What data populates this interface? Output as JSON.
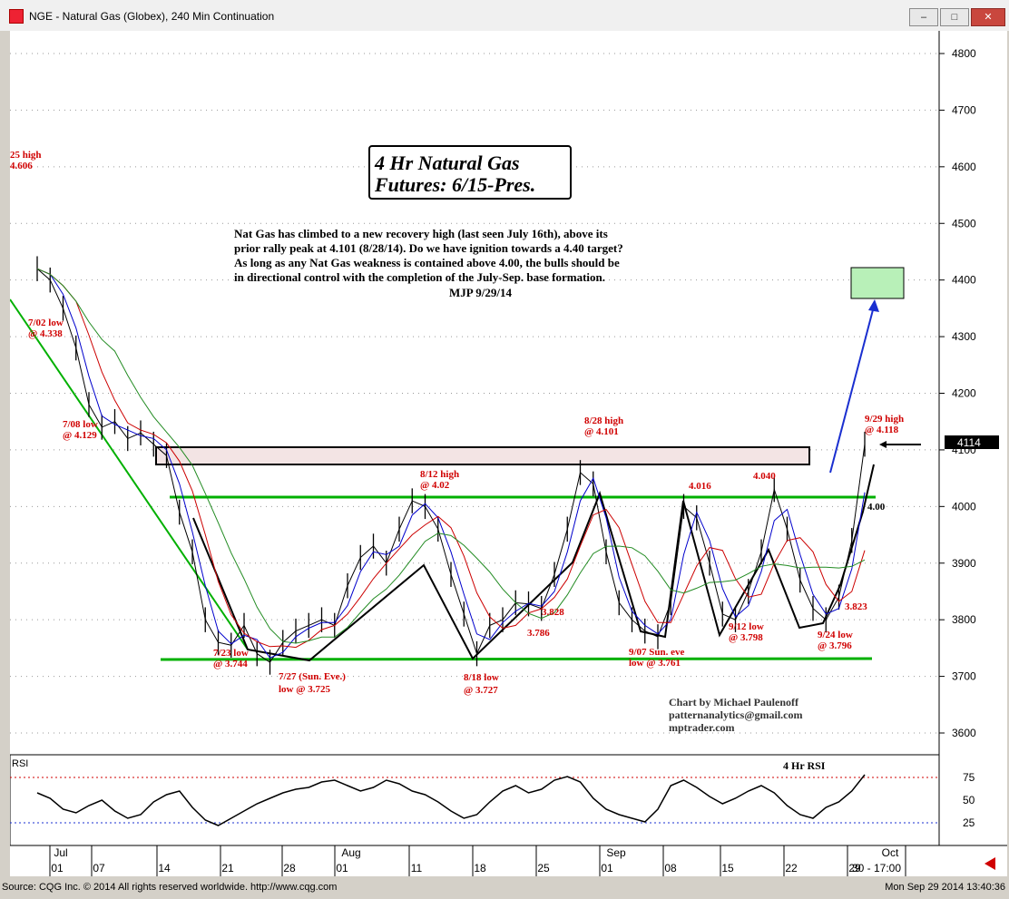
{
  "window": {
    "title": "NGE - Natural Gas (Globex), 240 Min Continuation",
    "btn_minimize": "–",
    "btn_maximize": "□",
    "btn_close": "✕",
    "icon": "app-icon"
  },
  "status": {
    "left": "Source: CQG Inc. © 2014 All rights reserved worldwide. http://www.cqg.com",
    "right": "Mon Sep 29 2014 13:40:36"
  },
  "chart_data": {
    "type": "line",
    "title": "4 Hr Natural Gas",
    "subtitle": "Futures:  6/15-Pres.",
    "commentary": [
      "Nat Gas has climbed to a new recovery high (last seen July 16th), above its",
      "prior rally peak at 4.101 (8/28/14). Do we have ignition towards a 4.40 target?",
      "As long as any Nat Gas weakness is contained above 4.00, the bulls should be",
      "in directional control with the completion of the July-Sep. base formation.",
      "MJP 9/29/14"
    ],
    "credit": [
      "Chart by Michael Paulenoff",
      "patternanalytics@gmail.com",
      "mptrader.com"
    ],
    "y_axis": {
      "ticks": [
        3600,
        3700,
        3800,
        3900,
        4000,
        4100,
        4200,
        4300,
        4400,
        4500,
        4600,
        4700,
        4800
      ],
      "ylim": [
        3560,
        4860
      ],
      "last_price": "4114"
    },
    "x_axis": {
      "months": [
        "Jul",
        "Aug",
        "Sep",
        "Oct"
      ],
      "days": [
        "01",
        "07",
        "14",
        "21",
        "28",
        "01",
        "11",
        "18",
        "25",
        "01",
        "08",
        "15",
        "22",
        "29",
        "30 - 17:00"
      ]
    },
    "series": [
      {
        "name": "",
        "x": [
          "07/01",
          "07/02",
          "07/03",
          "07/07",
          "07/08",
          "07/09",
          "07/10",
          "07/11",
          "07/14",
          "07/15",
          "07/16",
          "07/17",
          "07/18",
          "07/21",
          "07/22",
          "07/23",
          "07/24",
          "07/25",
          "07/27",
          "07/28",
          "07/29",
          "07/30",
          "07/31",
          "08/01",
          "08/04",
          "08/05",
          "08/06",
          "08/07",
          "08/08",
          "08/11",
          "08/12",
          "08/13",
          "08/14",
          "08/15",
          "08/18",
          "08/19",
          "08/20",
          "08/21",
          "08/22",
          "08/25",
          "08/26",
          "08/27",
          "08/28",
          "08/29",
          "09/02",
          "09/03",
          "09/04",
          "09/05",
          "09/07",
          "09/08",
          "09/09",
          "09/10",
          "09/11",
          "09/12",
          "09/15",
          "09/16",
          "09/17",
          "09/18",
          "09/19",
          "09/22",
          "09/23",
          "09/24",
          "09/25",
          "09/26",
          "09/29"
        ],
        "values": [
          4420,
          4400,
          4350,
          4280,
          4180,
          4140,
          4150,
          4120,
          4130,
          4110,
          4090,
          3990,
          3920,
          3800,
          3760,
          3755,
          3790,
          3740,
          3725,
          3760,
          3780,
          3790,
          3800,
          3790,
          3860,
          3910,
          3930,
          3900,
          3960,
          4010,
          4000,
          3960,
          3880,
          3810,
          3740,
          3790,
          3800,
          3830,
          3828,
          3820,
          3880,
          3960,
          4060,
          4040,
          3920,
          3830,
          3800,
          3780,
          3770,
          3830,
          4000,
          3980,
          3900,
          3810,
          3800,
          3850,
          3920,
          4030,
          3960,
          3870,
          3820,
          3800,
          3840,
          3940,
          4110
        ]
      }
    ],
    "annotations": {
      "a_2506_1": "25 high",
      "a_2506_2": "4.606",
      "jul02_1": "7/02 low",
      "jul02_2": "@ 4.338",
      "jul08_1": "7/08 low",
      "jul08_2": "@ 4.129",
      "jul23_1": "7/23 low",
      "jul23_2": "@ 3.744",
      "jul27_1": "7/27 (Sun. Eve.)",
      "jul27_2": "low @ 3.725",
      "aug12_1": "8/12 high",
      "aug12_2": "@ 4.02",
      "aug18_1": "8/18 low",
      "aug18_2": "@ 3.727",
      "p3786": "3.786",
      "p3828": "3.828",
      "aug28_1": "8/28 high",
      "aug28_2": "@ 4.101",
      "sep07_1": "9/07 Sun. eve",
      "sep07_2": "low @ 3.761",
      "p4016": "4.016",
      "p4040": "4.040",
      "sep12_1": "9/12 low",
      "sep12_2": "@ 3.798",
      "sep24_1": "9/24 low",
      "sep24_2": "@ 3.796",
      "p3823": "3.823",
      "sep29_1": "9/29 high",
      "sep29_2": "@ 4.118",
      "p400": "4.00"
    },
    "rsi": {
      "label": "RSI",
      "title": "4 Hr RSI",
      "ticks": [
        25,
        50,
        75
      ],
      "values": [
        58,
        52,
        40,
        36,
        44,
        50,
        38,
        30,
        34,
        48,
        56,
        60,
        42,
        28,
        22,
        30,
        38,
        46,
        52,
        58,
        62,
        64,
        70,
        72,
        66,
        60,
        64,
        72,
        68,
        60,
        56,
        48,
        38,
        30,
        34,
        48,
        60,
        66,
        58,
        62,
        72,
        76,
        70,
        52,
        40,
        34,
        30,
        26,
        40,
        66,
        72,
        64,
        54,
        46,
        52,
        60,
        66,
        58,
        44,
        34,
        30,
        42,
        48,
        60,
        78
      ],
      "ylim": [
        0,
        100
      ]
    },
    "colors": {
      "price": "#000000",
      "ma_short": "#0000cc",
      "ma_mid": "#cc0000",
      "ma_long": "#228b22",
      "trend": "#00b000",
      "target": "#1a2fd0",
      "annotation": "#d00000",
      "target_box": "#b8f0b8"
    }
  }
}
